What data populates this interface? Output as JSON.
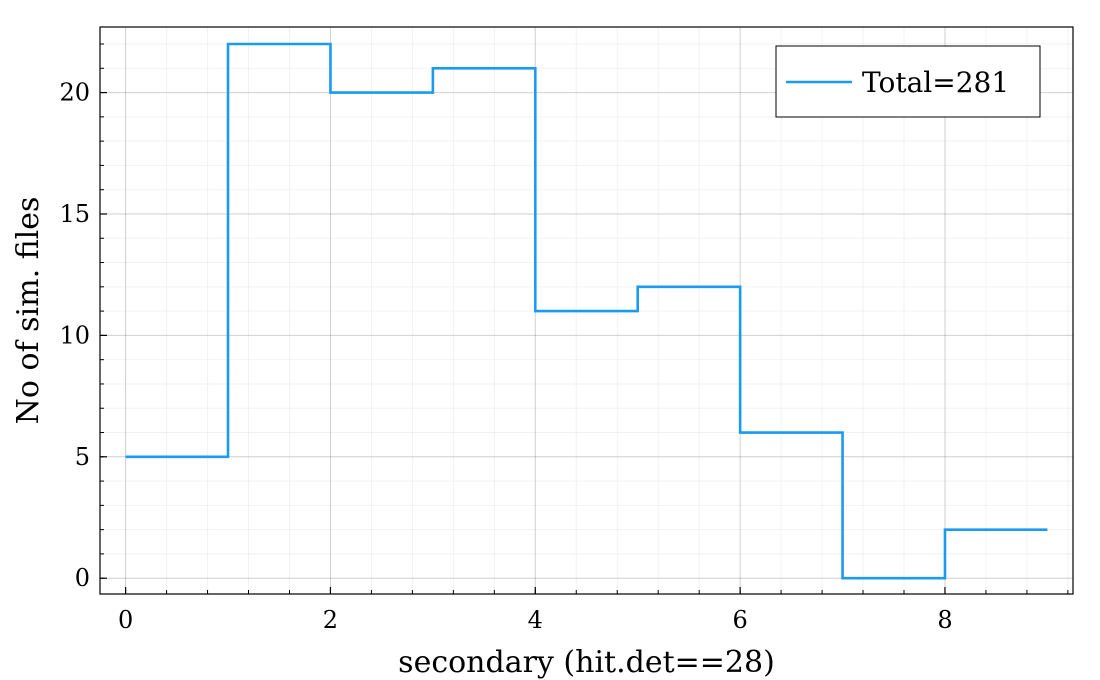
{
  "chart_data": {
    "type": "line",
    "step": "post",
    "title": "",
    "xlabel": "secondary (hit.det==28)",
    "ylabel": "No of sim. files",
    "xlim": [
      -0.25,
      9.25
    ],
    "ylim": [
      -0.65,
      22.7
    ],
    "xticks": [
      0,
      2,
      4,
      6,
      8
    ],
    "yticks": [
      0,
      5,
      10,
      15,
      20
    ],
    "xtick_labels": [
      "0",
      "2",
      "4",
      "6",
      "8"
    ],
    "ytick_labels": [
      "0",
      "5",
      "10",
      "15",
      "20"
    ],
    "grid": true,
    "minor_grid": true,
    "legend_position": "top-right",
    "series": [
      {
        "name": "Total=281",
        "color": "#1a9af0",
        "x": [
          0,
          1,
          2,
          3,
          4,
          5,
          6,
          7,
          8,
          9
        ],
        "y": [
          5,
          22,
          20,
          21,
          11,
          12,
          6,
          0,
          2,
          2
        ]
      }
    ]
  }
}
